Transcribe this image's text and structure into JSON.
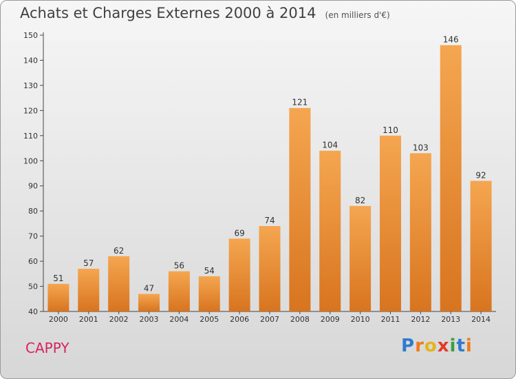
{
  "chart_data": {
    "type": "bar",
    "title": "Achats et Charges Externes 2000 à 2014",
    "subtitle": "(en milliers d'€)",
    "categories": [
      "2000",
      "2001",
      "2002",
      "2003",
      "2004",
      "2005",
      "2006",
      "2007",
      "2008",
      "2009",
      "2010",
      "2011",
      "2012",
      "2013",
      "2014"
    ],
    "values": [
      51,
      57,
      62,
      47,
      56,
      54,
      69,
      74,
      121,
      104,
      82,
      110,
      103,
      146,
      92
    ],
    "ylim": [
      40,
      150
    ],
    "yticks": [
      40,
      50,
      60,
      70,
      80,
      90,
      100,
      110,
      120,
      130,
      140,
      150
    ],
    "grid": false,
    "bar_color_top": "#f5a650",
    "bar_color_bottom": "#d8741f"
  },
  "commune": "CAPPY",
  "logo": {
    "letters": [
      "P",
      "r",
      "o",
      "x",
      "i",
      "t",
      "i"
    ],
    "colors": [
      "#2e7bd0",
      "#f07a1a",
      "#e5b51a",
      "#e23a2a",
      "#3aa040",
      "#2e7bd0",
      "#f07a1a"
    ]
  }
}
